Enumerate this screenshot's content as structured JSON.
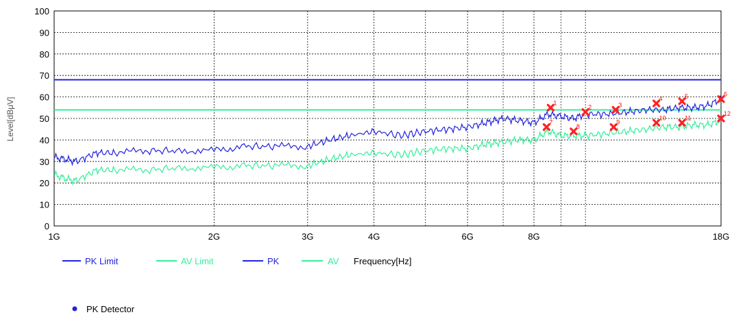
{
  "chart_data": {
    "type": "line",
    "title": "",
    "xlabel": "Frequency[Hz]",
    "ylabel": "Level[dBμV]",
    "x_scale": "log",
    "x_unit": "Hz",
    "xlim": [
      1000000000,
      18000000000
    ],
    "ylim": [
      0,
      100
    ],
    "grid": true,
    "legend_position": "bottom",
    "y_ticks": [
      0,
      10,
      20,
      30,
      40,
      50,
      60,
      70,
      80,
      90,
      100
    ],
    "x_ticks": [
      {
        "value": 1000000000,
        "label": "1G"
      },
      {
        "value": 2000000000,
        "label": "2G"
      },
      {
        "value": 3000000000,
        "label": "3G"
      },
      {
        "value": 4000000000,
        "label": "4G"
      },
      {
        "value": 6000000000,
        "label": "6G"
      },
      {
        "value": 8000000000,
        "label": "8G"
      },
      {
        "value": 18000000000,
        "label": "18G"
      }
    ],
    "minor_gridlines_x": [
      5000000000,
      7000000000,
      9000000000,
      10000000000
    ],
    "series": [
      {
        "name": "PK Limit",
        "color": "#2222dd",
        "kind": "hline",
        "value": 68
      },
      {
        "name": "AV Limit",
        "color": "#33ee99",
        "kind": "hline",
        "value": 54
      },
      {
        "name": "PK",
        "color": "#2222dd",
        "kind": "trace",
        "x": [
          1000000000,
          1050000000,
          1100000000,
          1200000000,
          1300000000,
          1500000000,
          1700000000,
          2000000000,
          2300000000,
          2600000000,
          3000000000,
          3300000000,
          3600000000,
          4000000000,
          4500000000,
          5000000000,
          5500000000,
          6000000000,
          6500000000,
          7000000000,
          7500000000,
          8000000000,
          8500000000,
          9000000000,
          9500000000,
          10000000000,
          11000000000,
          12000000000,
          13000000000,
          14000000000,
          15000000000,
          16000000000,
          17000000000,
          18000000000
        ],
        "y": [
          32,
          31,
          30,
          34,
          34,
          35,
          35,
          35,
          37,
          37,
          37,
          40,
          42,
          44,
          42,
          44,
          45,
          46,
          48,
          50,
          49,
          48,
          52,
          51,
          50,
          52,
          52,
          53,
          54,
          54,
          55,
          55,
          56,
          59
        ]
      },
      {
        "name": "AV",
        "color": "#33ee99",
        "kind": "trace",
        "x": [
          1000000000,
          1050000000,
          1100000000,
          1200000000,
          1300000000,
          1500000000,
          1700000000,
          2000000000,
          2300000000,
          2600000000,
          3000000000,
          3300000000,
          3600000000,
          4000000000,
          4500000000,
          5000000000,
          5500000000,
          6000000000,
          6500000000,
          7000000000,
          7500000000,
          8000000000,
          8500000000,
          9000000000,
          9500000000,
          10000000000,
          11000000000,
          12000000000,
          13000000000,
          14000000000,
          15000000000,
          16000000000,
          17000000000,
          18000000000
        ],
        "y": [
          24,
          22,
          21,
          26,
          26,
          26,
          27,
          27,
          28,
          28,
          28,
          31,
          33,
          34,
          33,
          35,
          36,
          36,
          38,
          39,
          40,
          40,
          44,
          42,
          42,
          42,
          43,
          44,
          45,
          46,
          46,
          47,
          47,
          49
        ]
      }
    ],
    "markers": [
      {
        "label": "1",
        "x": 8600000000,
        "y": 55
      },
      {
        "label": "2",
        "x": 10000000000,
        "y": 53
      },
      {
        "label": "3",
        "x": 11400000000,
        "y": 54
      },
      {
        "label": "4",
        "x": 13600000000,
        "y": 57
      },
      {
        "label": "5",
        "x": 15200000000,
        "y": 58
      },
      {
        "label": "6",
        "x": 18000000000,
        "y": 59
      },
      {
        "label": "7",
        "x": 8450000000,
        "y": 46
      },
      {
        "label": "8",
        "x": 9500000000,
        "y": 44
      },
      {
        "label": "9",
        "x": 11300000000,
        "y": 46
      },
      {
        "label": "10",
        "x": 13600000000,
        "y": 48
      },
      {
        "label": "11",
        "x": 15200000000,
        "y": 48
      },
      {
        "label": "12",
        "x": 18000000000,
        "y": 50
      }
    ],
    "marker_color": "#ff2222"
  },
  "legend": {
    "items": [
      {
        "label": "PK Limit",
        "color": "#2222dd"
      },
      {
        "label": "AV Limit",
        "color": "#33ee99"
      },
      {
        "label": "PK",
        "color": "#2222dd"
      },
      {
        "label": "AV",
        "color": "#33ee99"
      }
    ],
    "xlabel_text": "Frequency[Hz]"
  },
  "detector": {
    "label": "PK Detector",
    "color": "#2222dd"
  }
}
